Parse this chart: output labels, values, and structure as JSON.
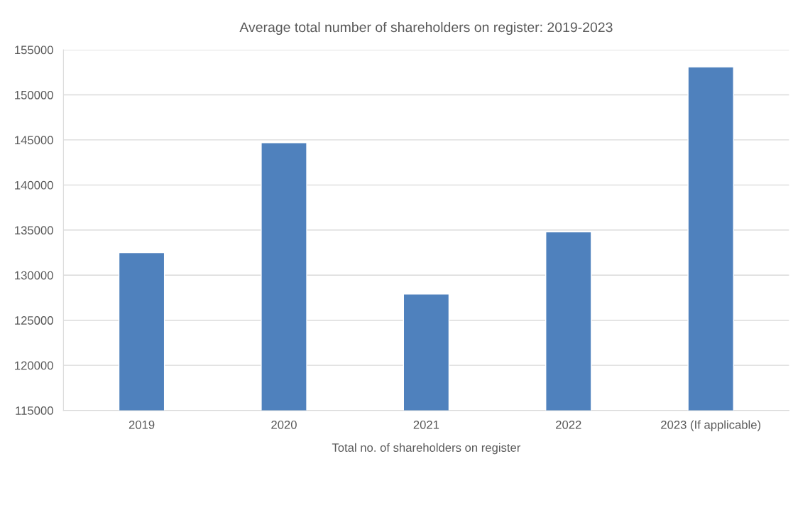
{
  "chart_data": {
    "type": "bar",
    "title": "Average total number of shareholders on register: 2019-2023",
    "xlabel": "Total no. of shareholders on register",
    "categories": [
      "2019",
      "2020",
      "2021",
      "2022",
      "2023 (If applicable)"
    ],
    "values": [
      132500,
      144700,
      127900,
      134800,
      153100
    ],
    "color": "#4f81bd",
    "ylim": [
      115000,
      155000
    ],
    "yticks": [
      115000,
      120000,
      125000,
      130000,
      135000,
      140000,
      145000,
      150000,
      155000
    ],
    "grid": "y"
  }
}
